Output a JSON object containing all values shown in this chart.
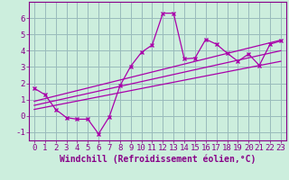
{
  "xlabel": "Windchill (Refroidissement éolien,°C)",
  "background_color": "#cceedd",
  "grid_color": "#99bbbb",
  "line_color": "#aa00aa",
  "text_color": "#880088",
  "spine_color": "#880088",
  "x_data": [
    0,
    1,
    2,
    3,
    4,
    5,
    6,
    7,
    8,
    9,
    10,
    11,
    12,
    13,
    14,
    15,
    16,
    17,
    18,
    19,
    20,
    21,
    22,
    23
  ],
  "y_data": [
    1.7,
    1.3,
    0.4,
    -0.1,
    -0.2,
    -0.2,
    -1.1,
    -0.05,
    1.85,
    3.05,
    3.9,
    4.35,
    6.3,
    6.3,
    3.5,
    3.55,
    4.7,
    4.4,
    3.85,
    3.35,
    3.8,
    3.1,
    4.4,
    4.6
  ],
  "reg1": [
    0.9,
    4.65
  ],
  "reg2": [
    0.65,
    4.0
  ],
  "reg3": [
    0.4,
    3.35
  ],
  "xlim": [
    -0.5,
    23.5
  ],
  "ylim": [
    -1.5,
    7.0
  ],
  "yticks": [
    -1,
    0,
    1,
    2,
    3,
    4,
    5,
    6
  ],
  "xticks": [
    0,
    1,
    2,
    3,
    4,
    5,
    6,
    7,
    8,
    9,
    10,
    11,
    12,
    13,
    14,
    15,
    16,
    17,
    18,
    19,
    20,
    21,
    22,
    23
  ],
  "tick_fontsize": 6.5,
  "xlabel_fontsize": 7.0,
  "marker_size": 3.5,
  "linewidth": 0.9
}
